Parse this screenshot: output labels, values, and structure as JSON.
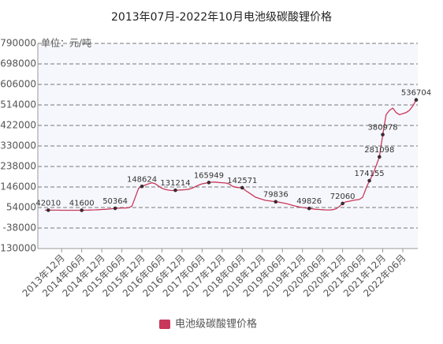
{
  "chart_data": {
    "type": "line",
    "title": "2013年07月-2022年10月电池级碳酸锂价格",
    "y_label": "单位：元/吨",
    "categories": [
      null,
      null,
      null,
      null,
      null,
      "2013年12月",
      null,
      null,
      null,
      null,
      null,
      "2014年06月",
      null,
      null,
      null,
      null,
      null,
      "2014年12月",
      null,
      null,
      null,
      null,
      null,
      "2015年06月",
      null,
      null,
      null,
      null,
      null,
      "2015年12月",
      null,
      null,
      null,
      null,
      null,
      "2016年06月",
      null,
      null,
      null,
      null,
      null,
      "2016年12月",
      null,
      null,
      null,
      null,
      null,
      "2017年06月",
      null,
      null,
      null,
      null,
      null,
      "2017年12月",
      null,
      null,
      null,
      null,
      null,
      "2018年06月",
      null,
      null,
      null,
      null,
      null,
      "2018年12月",
      null,
      null,
      null,
      null,
      null,
      "2019年06月",
      null,
      null,
      null,
      null,
      null,
      "2019年12月",
      null,
      null,
      null,
      null,
      null,
      "2020年06月",
      null,
      null,
      null,
      null,
      null,
      "2020年12月",
      null,
      null,
      null,
      null,
      null,
      "2021年06月",
      null,
      null,
      null,
      null,
      null,
      "2021年12月",
      null,
      null,
      null,
      null,
      null,
      "2022年06月",
      null,
      null,
      null,
      null
    ],
    "series": [
      {
        "name": "电池级碳酸锂价格",
        "color": "#c8385a",
        "values": [
          42000,
          42010,
          42000,
          41900,
          41800,
          41700,
          41700,
          41600,
          41600,
          41600,
          41600,
          41600,
          42000,
          42500,
          43000,
          43500,
          44000,
          45000,
          46000,
          47000,
          48500,
          50364,
          51000,
          52000,
          52000,
          53000,
          60000,
          100000,
          140000,
          148624,
          155000,
          160000,
          165000,
          160000,
          150000,
          140000,
          135000,
          132000,
          130000,
          131214,
          132000,
          133000,
          134000,
          136000,
          140000,
          148000,
          155000,
          160000,
          163000,
          165949,
          168000,
          168000,
          166000,
          165000,
          164000,
          160000,
          150000,
          145000,
          143000,
          142571,
          130000,
          120000,
          110000,
          100000,
          95000,
          90000,
          86000,
          84000,
          82000,
          79836,
          78000,
          75000,
          72000,
          68000,
          64000,
          60000,
          57000,
          54000,
          52000,
          49826,
          48000,
          46000,
          45000,
          44000,
          43000,
          43000,
          44000,
          48000,
          58000,
          72060,
          80000,
          82000,
          86000,
          88000,
          90000,
          100000,
          140000,
          174155,
          200000,
          240000,
          281098,
          380978,
          470000,
          490000,
          500000,
          480000,
          470000,
          475000,
          480000,
          490000,
          510000,
          536704
        ]
      }
    ],
    "marked_points": [
      1,
      11,
      21,
      29,
      39,
      49,
      59,
      69,
      79,
      89,
      97,
      100,
      101,
      111
    ],
    "ylim": [
      -130000,
      790000
    ],
    "yticks": [
      -130000,
      -38000,
      54000,
      146000,
      238000,
      330000,
      422000,
      514000,
      606000,
      698000,
      790000
    ],
    "grid": true,
    "legend": "bottom"
  }
}
